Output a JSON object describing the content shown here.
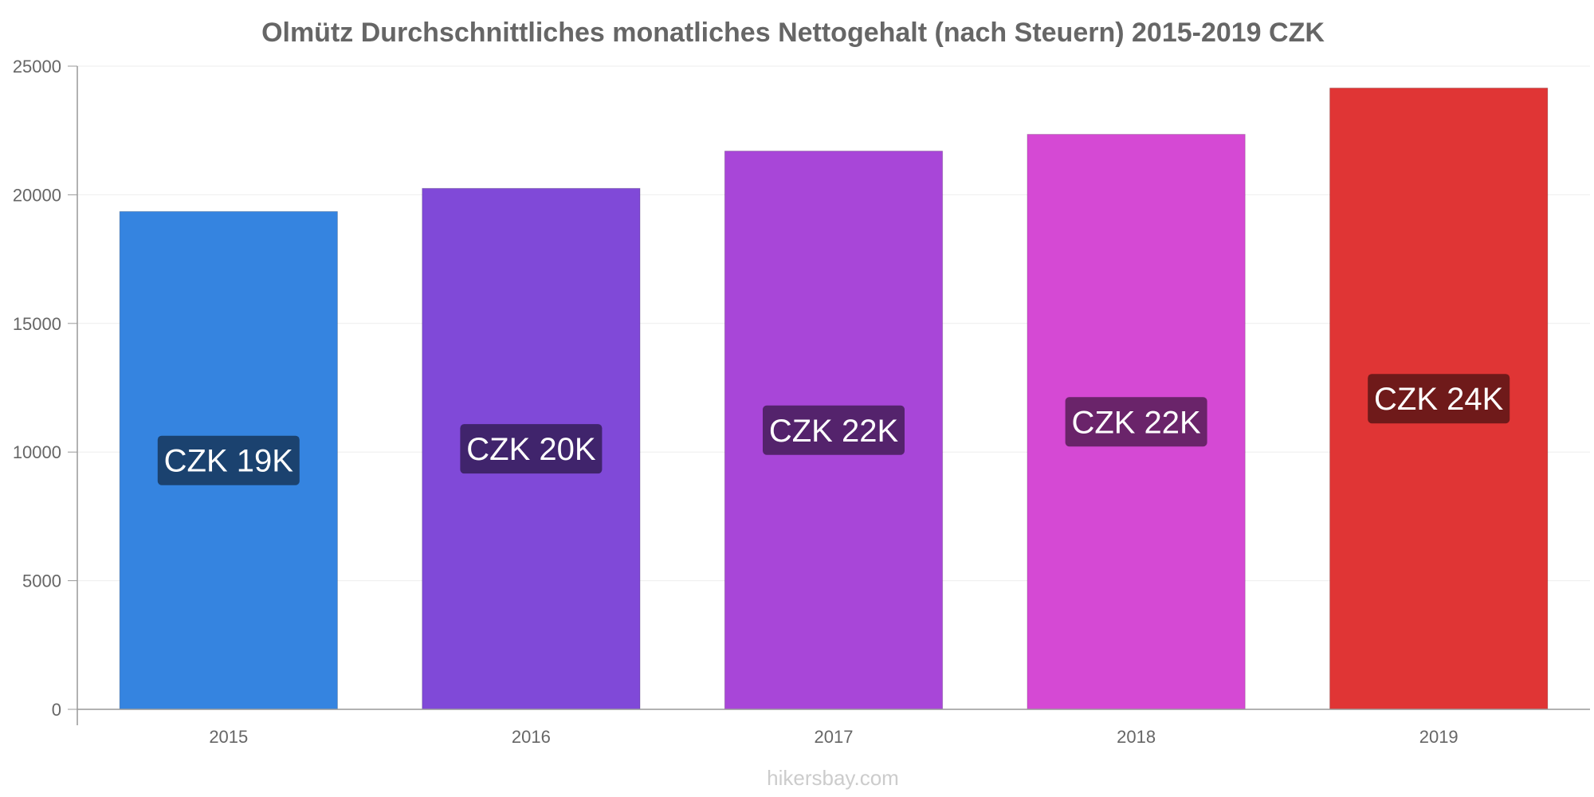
{
  "chart_data": {
    "type": "bar",
    "title": "Olmütz Durchschnittliches monatliches Nettogehalt (nach Steuern) 2015-2019 CZK",
    "categories": [
      "2015",
      "2016",
      "2017",
      "2018",
      "2019"
    ],
    "values": [
      19350,
      20250,
      21700,
      22350,
      24150
    ],
    "data_labels": [
      "CZK 19K",
      "CZK 20K",
      "CZK 22K",
      "CZK 22K",
      "CZK 24K"
    ],
    "bar_colors": [
      "#3584e0",
      "#8049d8",
      "#a846d8",
      "#d549d4",
      "#e03535"
    ],
    "label_bg_colors": [
      "#1b426f",
      "#40246c",
      "#54236c",
      "#6a246a",
      "#6f1a1a"
    ],
    "xlabel": "",
    "ylabel": "",
    "ylim": [
      0,
      25000
    ],
    "yticks": [
      "0",
      "5000",
      "10000",
      "15000",
      "20000",
      "25000"
    ],
    "grid": true,
    "legend": "none"
  },
  "watermark": "hikersbay.com"
}
